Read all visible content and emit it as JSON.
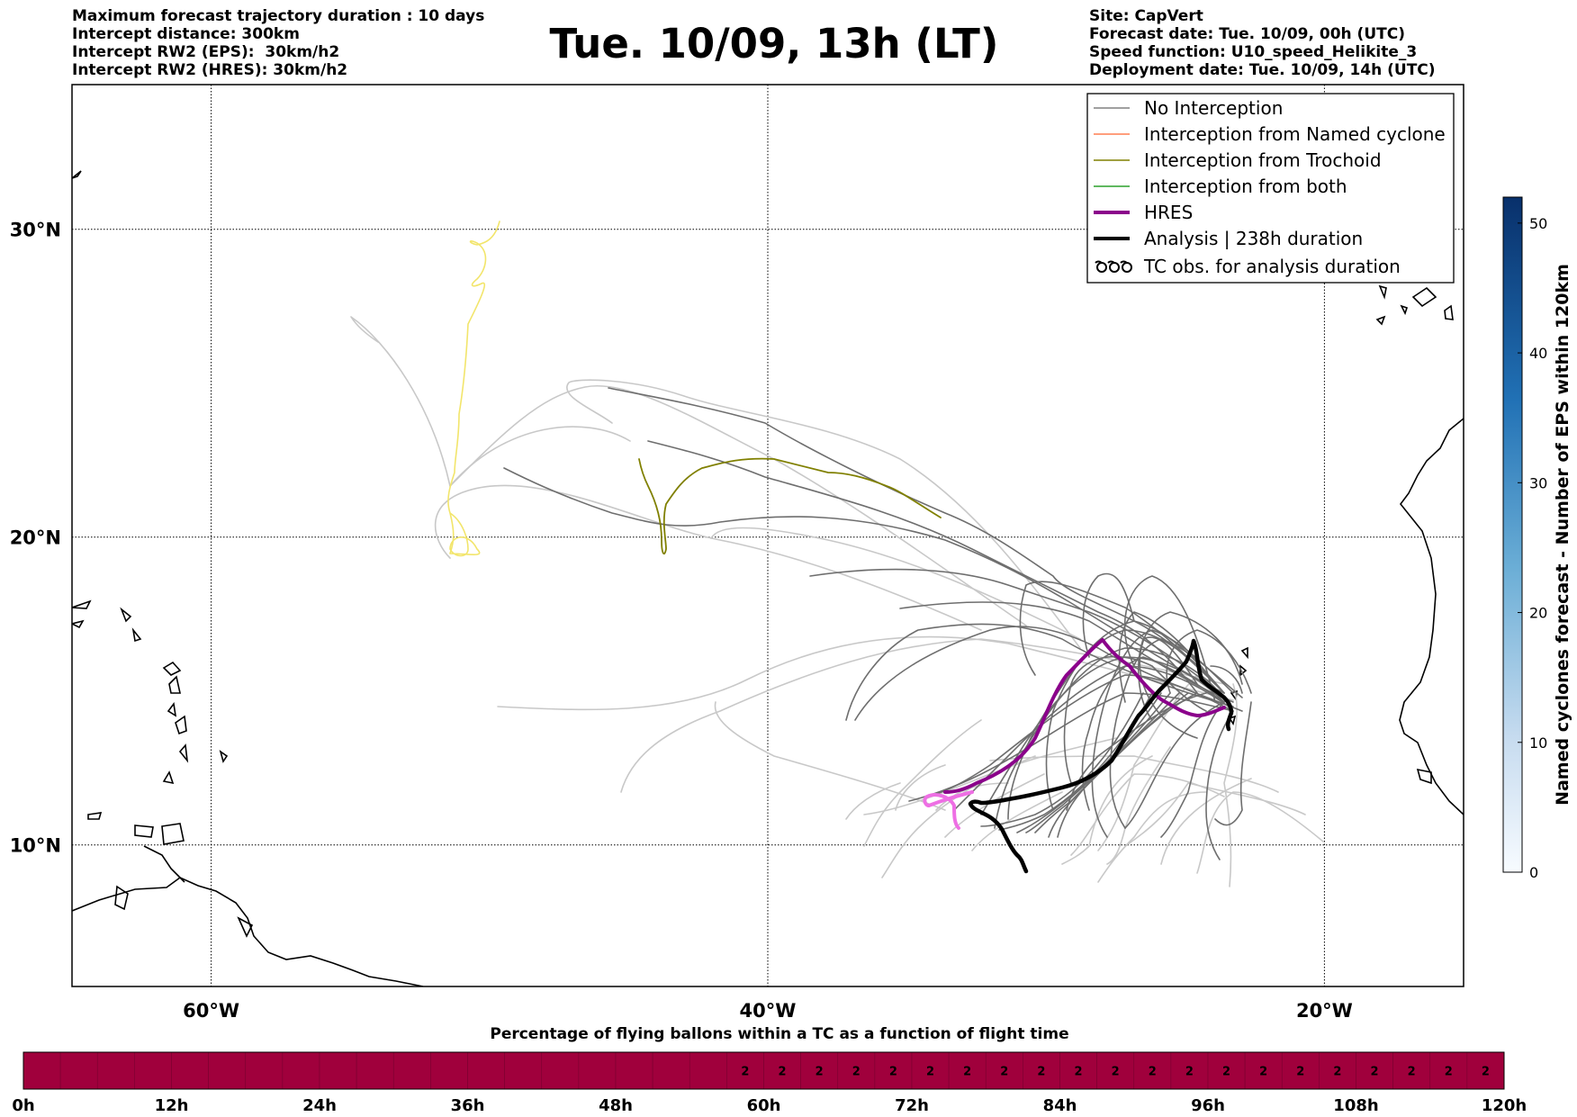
{
  "header": {
    "left_lines": [
      "Maximum forecast trajectory duration : 10 days",
      "Intercept distance: 300km",
      "Intercept RW2 (EPS):  30km/h2",
      "Intercept RW2 (HRES): 30km/h2"
    ],
    "title": "Tue. 10/09, 13h (LT)",
    "right_lines": [
      "Site: CapVert",
      "Forecast date: Tue. 10/09, 00h (UTC)",
      "Speed function: U10_speed_Helikite_3",
      "Deployment date: Tue. 10/09, 14h (UTC)"
    ]
  },
  "map": {
    "lat_labels": [
      "30°N",
      "20°N",
      "10°N"
    ],
    "lon_labels": [
      "60°W",
      "40°W",
      "20°W"
    ],
    "lat_values": [
      30,
      20,
      10
    ],
    "lon_values": [
      -60,
      -40,
      -20
    ],
    "extent": {
      "lon_min": -65,
      "lon_max": -15,
      "lat_min": 5.4,
      "lat_max": 34.7
    }
  },
  "legend": {
    "entries": [
      {
        "label": "No Interception",
        "color": "#808080"
      },
      {
        "label": "Interception from Named cyclone",
        "color": "#ff7f50"
      },
      {
        "label": "Interception from Trochoid",
        "color": "#808000"
      },
      {
        "label": "Interception from both",
        "color": "#2ca02c"
      },
      {
        "label": "HRES",
        "color": "#8b008b"
      },
      {
        "label": "Analysis | 238h duration",
        "color": "#000000"
      },
      {
        "label": "TC obs. for analysis duration",
        "icon": "tc-symbol-icon"
      }
    ]
  },
  "colorbar": {
    "label": "Named cyclones forecast - Number of EPS within 120km",
    "ticks": [
      "0",
      "10",
      "20",
      "30",
      "40",
      "50"
    ],
    "tick_values": [
      0,
      10,
      20,
      30,
      40,
      50
    ],
    "max": 52,
    "colormap": "Blues"
  },
  "timeline": {
    "title": "Percentage of flying ballons within a TC as a function of flight time",
    "ticks": [
      "0h",
      "12h",
      "24h",
      "36h",
      "48h",
      "60h",
      "72h",
      "84h",
      "96h",
      "108h",
      "120h"
    ],
    "start_hour": 0,
    "end_hour": 120,
    "step_hours": 3,
    "values_from_hour": 57,
    "value": "2",
    "color": "#a0003c"
  }
}
